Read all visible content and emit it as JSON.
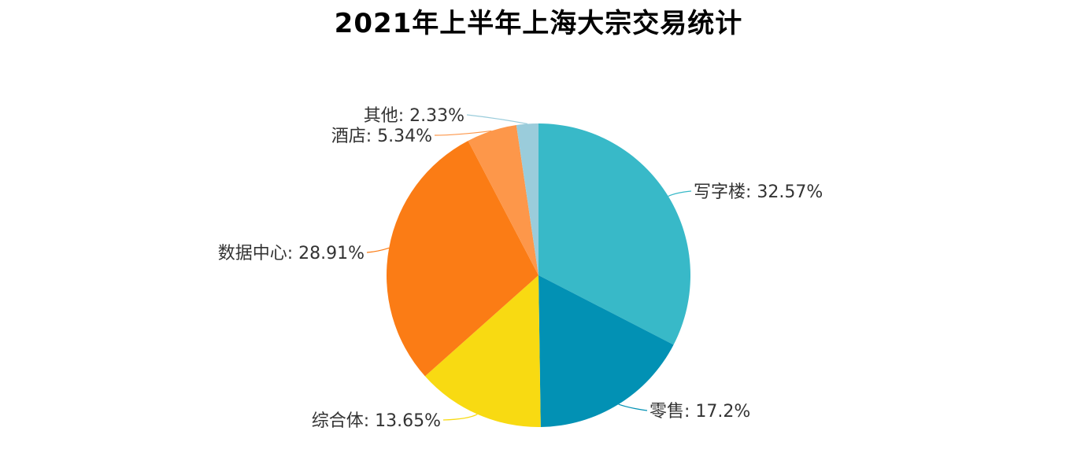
{
  "chart_data": {
    "type": "pie",
    "title": "2021年上半年上海大宗交易统计",
    "label_separator": ": ",
    "slices": [
      {
        "name": "写字楼",
        "value": 32.57,
        "label": "写字楼: 32.57%",
        "color": "#38B9C8"
      },
      {
        "name": "零售",
        "value": 17.2,
        "label": "零售: 17.2%",
        "color": "#0291B4"
      },
      {
        "name": "综合体",
        "value": 13.65,
        "label": "综合体: 13.65%",
        "color": "#F8DA12"
      },
      {
        "name": "数据中心",
        "value": 28.91,
        "label": "数据中心: 28.91%",
        "color": "#FB7C15"
      },
      {
        "name": "酒店",
        "value": 5.34,
        "label": "酒店: 5.34%",
        "color": "#FD974A"
      },
      {
        "name": "其他",
        "value": 2.33,
        "label": "其他: 2.33%",
        "color": "#9ACCDB"
      }
    ],
    "start_angle_deg": 0,
    "direction": "clockwise",
    "legend": "none"
  }
}
